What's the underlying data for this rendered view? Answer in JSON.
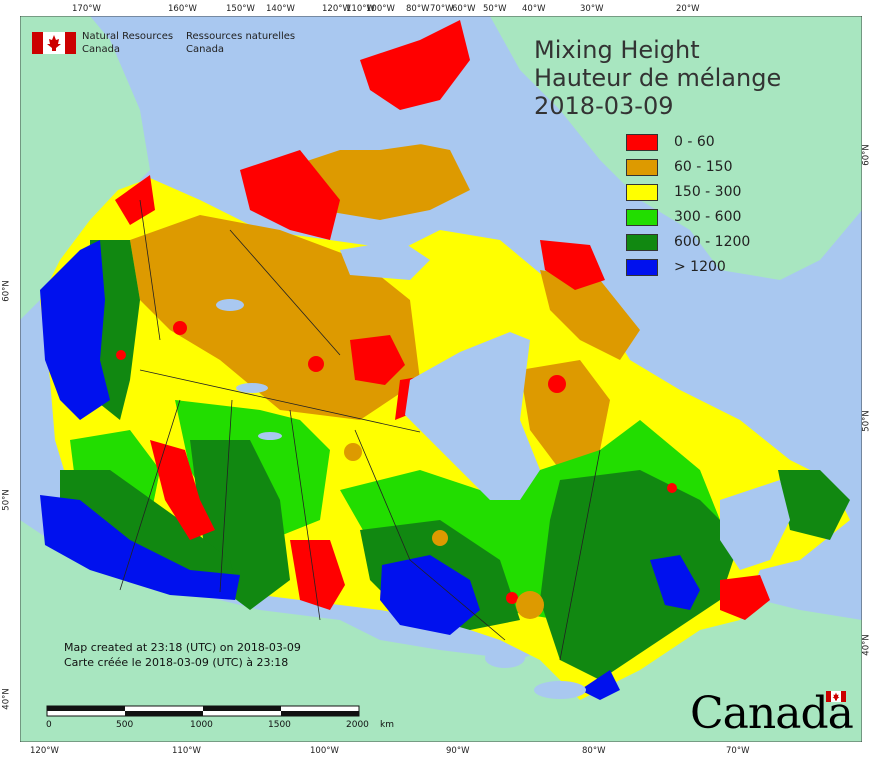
{
  "title": {
    "line1": "Mixing Height",
    "line2": "Hauteur de mélange",
    "date": "2018-03-09"
  },
  "agency": {
    "en": "Natural Resources Canada",
    "fr": "Ressources naturelles Canada"
  },
  "legend": [
    {
      "label": "0 - 60",
      "color": "#ff0000"
    },
    {
      "label": "60 - 150",
      "color": "#dd9a00"
    },
    {
      "label": "150 - 300",
      "color": "#ffff00"
    },
    {
      "label": "300 - 600",
      "color": "#22dd00"
    },
    {
      "label": "600 - 1200",
      "color": "#118811"
    },
    {
      "label": "> 1200",
      "color": "#0011ee"
    }
  ],
  "graticule": {
    "top_longitudes": [
      "170°W",
      "160°W",
      "150°W",
      "140°W",
      "120°W",
      "110°W",
      "100°W",
      "80°W",
      "70°W",
      "60°W",
      "50°W",
      "40°W",
      "30°W",
      "20°W"
    ],
    "bottom_longitudes": [
      "120°W",
      "110°W",
      "100°W",
      "90°W",
      "80°W",
      "70°W"
    ],
    "left_latitudes": [
      "60°N",
      "50°N",
      "40°N"
    ],
    "right_latitudes": [
      "60°N",
      "50°N",
      "40°N"
    ]
  },
  "created": {
    "en": "Map created at 23:18 (UTC) on 2018-03-09",
    "fr": "Carte créée le 2018-03-09 (UTC) à 23:18"
  },
  "scale": {
    "ticks": [
      "0",
      "500",
      "1000",
      "1500",
      "2000"
    ],
    "unit": "km"
  },
  "wordmark": "Canada",
  "colors": {
    "ocean": "#a9c8f0",
    "foreign_land": "#a8e6c0",
    "water": "#a9c8f0",
    "border": "#222222"
  }
}
